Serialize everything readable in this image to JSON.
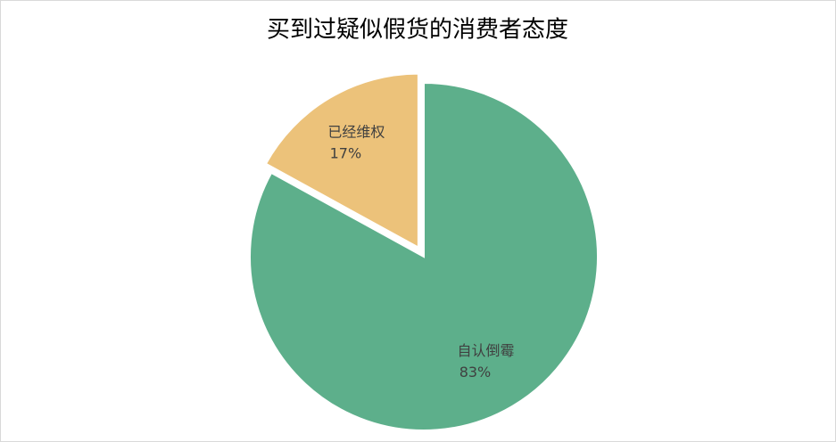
{
  "chart_data": {
    "type": "pie",
    "title": "买到过疑似假货的消费者态度",
    "categories": [
      "自认倒霉",
      "已经维权"
    ],
    "values": [
      83,
      17
    ],
    "value_labels": [
      "83%",
      "17%"
    ],
    "colors": [
      "#5daf8b",
      "#ecc27a"
    ]
  }
}
